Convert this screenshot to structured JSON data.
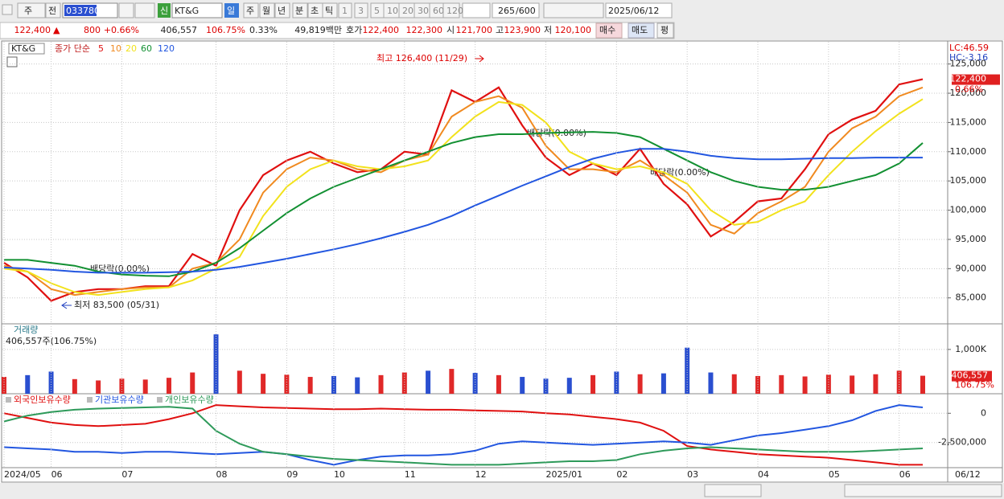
{
  "toolbar": {
    "period_select": "주",
    "prev": "전",
    "code": "033780",
    "new_tag": "신",
    "name": "KT&G",
    "periods": [
      "일",
      "주",
      "월",
      "년",
      "분",
      "초",
      "틱"
    ],
    "intervals": [
      "1",
      "3",
      "5",
      "10",
      "20",
      "30",
      "60",
      "120"
    ],
    "count": "265",
    "max_count": "/600",
    "date": "2025/06/12"
  },
  "quote": {
    "price": "122,400",
    "arrow": "▲",
    "change": "800",
    "change_pct": "+0.66%",
    "volume": "406,557",
    "volume_ratio": "106.75%",
    "turnover": "0.33%",
    "amount": "49,819백만",
    "bid_ask_label": "호가",
    "ask": "122,400",
    "bid": "122,300",
    "open_label": "시",
    "open": "121,700",
    "high_label": "고",
    "high": "123,900",
    "low_label": "저",
    "low": "120,100",
    "buy": "매수",
    "sell": "매도",
    "avg": "평"
  },
  "chart_data": [
    {
      "type": "line",
      "symbol": "KT&G",
      "legend_label": "종가 단순",
      "ylim": [
        80700,
        128800
      ],
      "yticks": [
        {
          "value": 85000,
          "label": "85,000"
        },
        {
          "value": 90000,
          "label": "90,000"
        },
        {
          "value": 95000,
          "label": "95,000"
        },
        {
          "value": 100000,
          "label": "100,000"
        },
        {
          "value": 105000,
          "label": "105,000"
        },
        {
          "value": 110000,
          "label": "110,000"
        },
        {
          "value": 115000,
          "label": "115,000"
        },
        {
          "value": 120000,
          "label": "120,000"
        },
        {
          "value": 125000,
          "label": "125,000"
        }
      ],
      "grid": true,
      "annotations": [
        "최고 126,400 (11/29)",
        "최저 83,500 (05/31)",
        "배당락(0.00%)",
        "배당락(0.00%)",
        "배당락(0.00%)"
      ],
      "lc_label": "LC:46.59",
      "hc_label": "HC:-3.16",
      "last_label": "122,400",
      "last_change_label": "0.66%",
      "series": [
        {
          "name": "5",
          "color": "#e01010",
          "values": [
            91000,
            88500,
            84500,
            86000,
            86500,
            86500,
            87000,
            87000,
            92500,
            90500,
            100000,
            106000,
            108500,
            110000,
            108000,
            106500,
            107000,
            110000,
            109500,
            120500,
            118500,
            121000,
            114500,
            109000,
            106000,
            108000,
            106000,
            110500,
            104500,
            101000,
            95500,
            98000,
            101500,
            102000,
            107000,
            113000,
            115500,
            117000,
            121500,
            122400
          ]
        },
        {
          "name": "10",
          "color": "#f08a20",
          "values": [
            90500,
            89500,
            86500,
            85500,
            86000,
            86500,
            86800,
            86800,
            90000,
            91000,
            95000,
            103000,
            107000,
            109000,
            108500,
            107000,
            106500,
            108500,
            109500,
            116000,
            118500,
            119500,
            117500,
            111000,
            107000,
            107000,
            106500,
            108500,
            106000,
            103000,
            97500,
            96000,
            99500,
            101500,
            104000,
            110000,
            114000,
            116000,
            119500,
            121000
          ]
        },
        {
          "name": "20",
          "color": "#f2e21c",
          "values": [
            90000,
            89500,
            87500,
            86000,
            85500,
            86000,
            86500,
            86800,
            88000,
            90000,
            92000,
            99000,
            104000,
            107000,
            108500,
            107500,
            107000,
            107500,
            108500,
            112500,
            116000,
            118500,
            118000,
            115000,
            110000,
            108000,
            107000,
            107500,
            106500,
            104500,
            100000,
            97500,
            98000,
            100000,
            101500,
            106000,
            110000,
            113500,
            116500,
            119000
          ]
        },
        {
          "name": "60",
          "color": "#129032",
          "values": [
            91500,
            91500,
            91000,
            90500,
            89500,
            89000,
            88800,
            88700,
            89500,
            91000,
            93500,
            96500,
            99500,
            102000,
            104000,
            105500,
            107000,
            108500,
            110000,
            111500,
            112500,
            113000,
            113000,
            113200,
            113300,
            113400,
            113200,
            112500,
            110500,
            108500,
            106500,
            105000,
            104000,
            103500,
            103500,
            104000,
            105000,
            106000,
            108000,
            111500
          ]
        },
        {
          "name": "120",
          "color": "#2256e0",
          "values": [
            90200,
            90000,
            89800,
            89500,
            89300,
            89300,
            89300,
            89400,
            89500,
            89800,
            90300,
            91000,
            91700,
            92500,
            93300,
            94200,
            95200,
            96300,
            97500,
            99000,
            100800,
            102500,
            104200,
            105800,
            107400,
            108800,
            109800,
            110500,
            110500,
            110000,
            109300,
            108900,
            108700,
            108700,
            108800,
            108900,
            108900,
            109000,
            109000,
            109000
          ]
        }
      ]
    },
    {
      "type": "bar",
      "title": "거래량",
      "subtitle": "406,557주(106.75%)",
      "ylim": [
        0,
        1560000
      ],
      "yticks": [
        {
          "value": 1000000,
          "label": "1,000K"
        }
      ],
      "up_color": "#e02828",
      "down_color": "#2a4fd0",
      "last_label": "406,557",
      "last_ratio_label": "106.75%",
      "values": [
        380000,
        420000,
        500000,
        330000,
        300000,
        340000,
        320000,
        360000,
        480000,
        1340000,
        520000,
        450000,
        430000,
        380000,
        400000,
        370000,
        420000,
        480000,
        520000,
        560000,
        470000,
        420000,
        380000,
        340000,
        360000,
        420000,
        500000,
        440000,
        460000,
        1040000,
        480000,
        440000,
        400000,
        420000,
        390000,
        430000,
        410000,
        440000,
        520000,
        406557
      ]
    },
    {
      "type": "line",
      "ylim": [
        -4650000,
        1600000
      ],
      "yticks": [
        0,
        {
          "value": -2500000,
          "label": "-2,500,000"
        }
      ],
      "categories": [
        "2024/05",
        null,
        "06",
        null,
        null,
        "07",
        null,
        null,
        null,
        "08",
        null,
        null,
        "09",
        null,
        "10",
        null,
        null,
        "11",
        null,
        null,
        "12",
        null,
        null,
        "2025/01",
        null,
        null,
        "02",
        null,
        null,
        "03",
        null,
        null,
        "04",
        null,
        null,
        "05",
        null,
        null,
        "06",
        null
      ],
      "last_date_label": "06/12",
      "series": [
        {
          "name": "외국인보유수량",
          "color": "#e01010",
          "values": [
            0,
            -400000,
            -800000,
            -1000000,
            -1100000,
            -1000000,
            -900000,
            -500000,
            0,
            700000,
            600000,
            500000,
            450000,
            400000,
            350000,
            350000,
            400000,
            350000,
            300000,
            300000,
            250000,
            200000,
            150000,
            0,
            -100000,
            -300000,
            -500000,
            -800000,
            -1500000,
            -2800000,
            -3100000,
            -3300000,
            -3500000,
            -3600000,
            -3700000,
            -3800000,
            -4000000,
            -4200000,
            -4400000,
            -4400000
          ]
        },
        {
          "name": "기관보유수량",
          "color": "#2256e0",
          "values": [
            -2900000,
            -3000000,
            -3100000,
            -3300000,
            -3300000,
            -3400000,
            -3300000,
            -3300000,
            -3400000,
            -3500000,
            -3400000,
            -3300000,
            -3500000,
            -4000000,
            -4400000,
            -4000000,
            -3700000,
            -3600000,
            -3600000,
            -3500000,
            -3200000,
            -2600000,
            -2400000,
            -2500000,
            -2600000,
            -2700000,
            -2600000,
            -2500000,
            -2400000,
            -2500000,
            -2700000,
            -2300000,
            -1900000,
            -1700000,
            -1400000,
            -1100000,
            -600000,
            200000,
            700000,
            500000
          ]
        },
        {
          "name": "개인보유수량",
          "color": "#2e9a5a",
          "values": [
            -700000,
            -200000,
            100000,
            300000,
            400000,
            450000,
            500000,
            550000,
            400000,
            -1500000,
            -2600000,
            -3300000,
            -3500000,
            -3700000,
            -3900000,
            -4000000,
            -4100000,
            -4200000,
            -4300000,
            -4400000,
            -4400000,
            -4400000,
            -4300000,
            -4200000,
            -4100000,
            -4100000,
            -4000000,
            -3500000,
            -3200000,
            -3000000,
            -2900000,
            -3000000,
            -3100000,
            -3200000,
            -3300000,
            -3300000,
            -3300000,
            -3200000,
            -3100000,
            -3000000
          ]
        }
      ]
    }
  ]
}
